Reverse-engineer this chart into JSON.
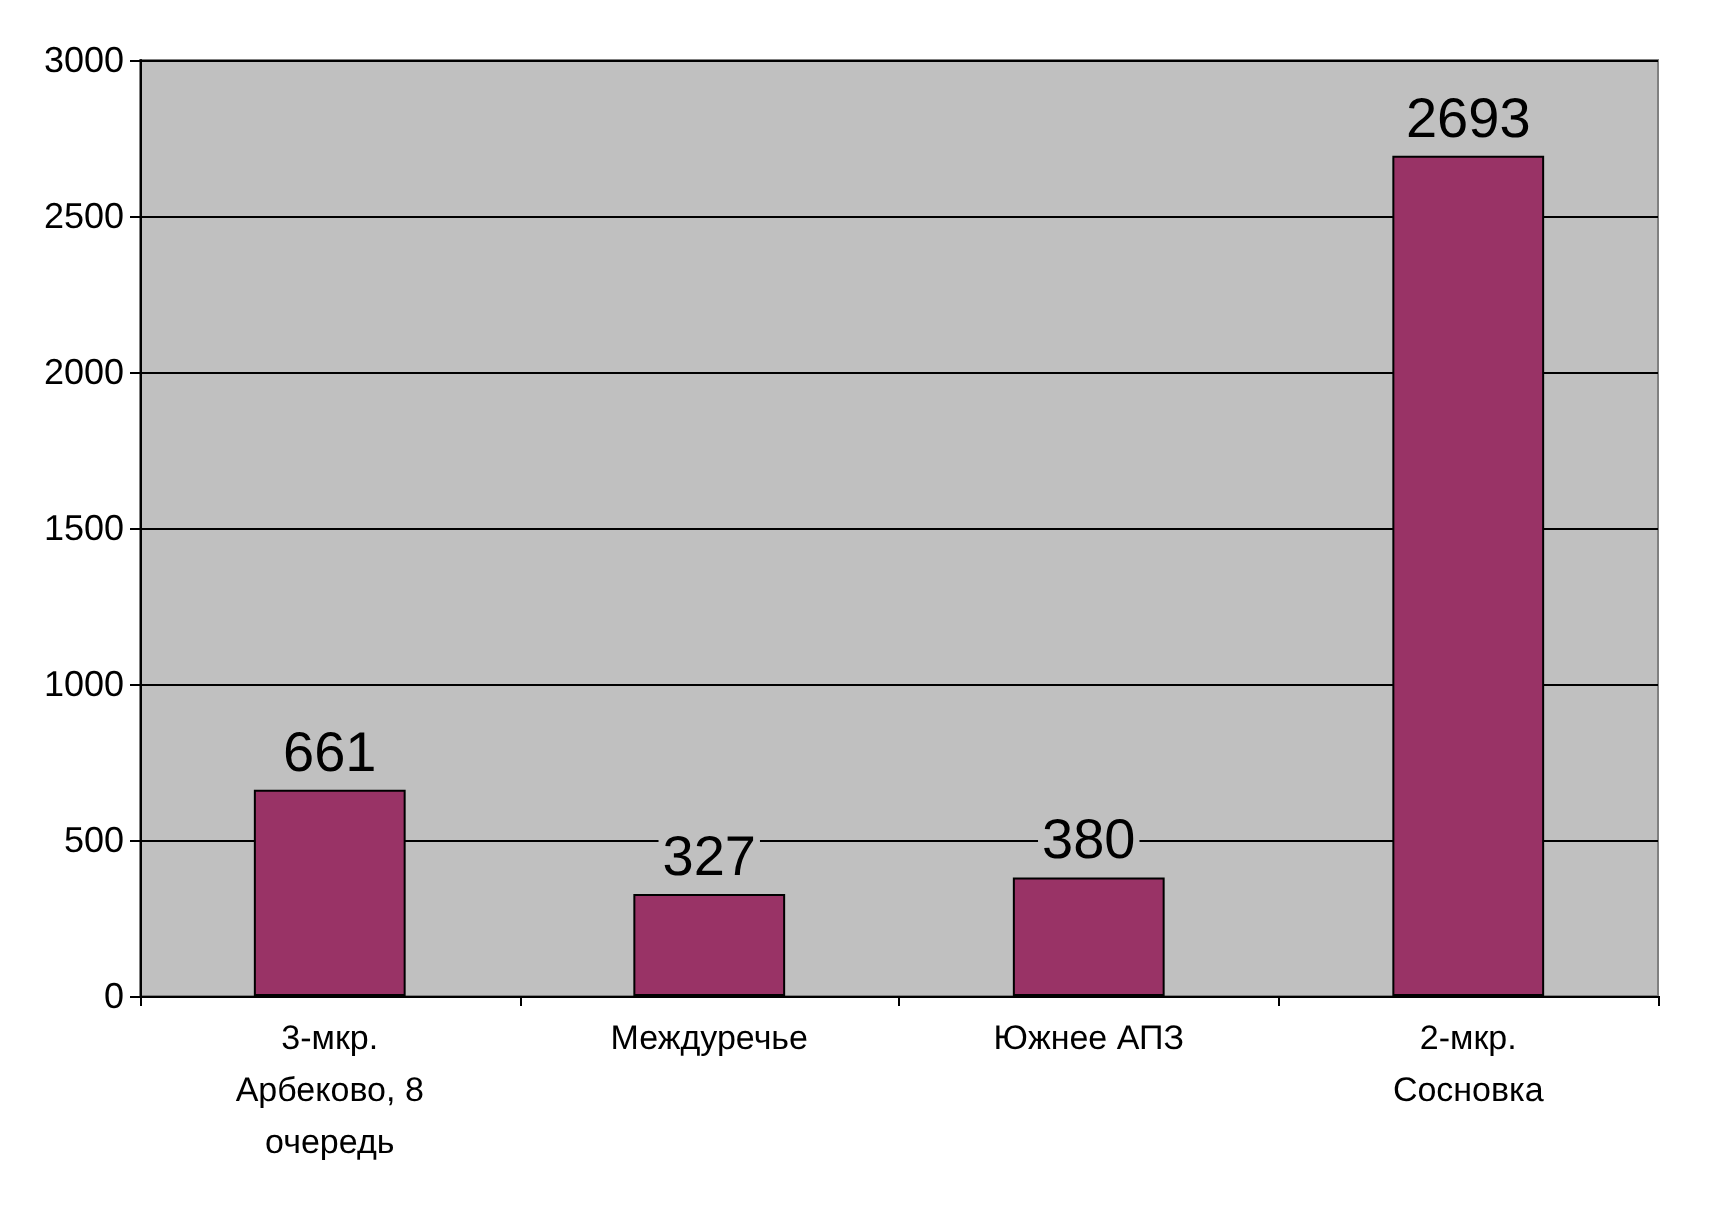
{
  "chart_data": {
    "type": "bar",
    "categories": [
      "3-мкр. Арбеково, 8 очередь",
      "Междуречье",
      "Южнее АПЗ",
      "2-мкр. Сосновка"
    ],
    "values": [
      661,
      327,
      380,
      2693
    ],
    "color": "#993366",
    "ylim": [
      0,
      3000
    ],
    "yticks": [
      0,
      500,
      1000,
      1500,
      2000,
      2500,
      3000
    ],
    "grid": "y",
    "data_labels": true
  }
}
